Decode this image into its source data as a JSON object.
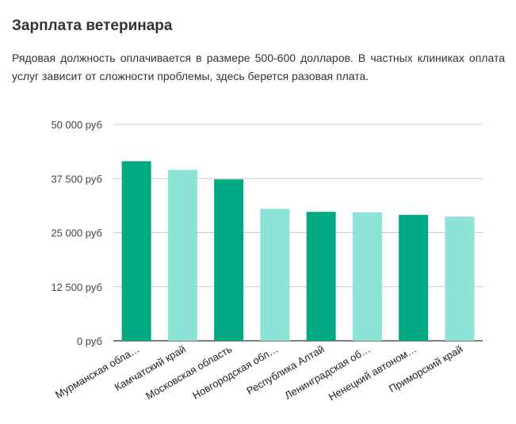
{
  "article": {
    "heading": "Зарплата ветеринара",
    "intro": "Рядовая должность оплачивается в размере 500-600 долларов. В частных клиниках оплата услуг зависит от сложности проблемы, здесь берется разовая плата."
  },
  "chart_data": {
    "type": "bar",
    "categories": [
      "Мурманская обла…",
      "Камчатский край",
      "Московская область",
      "Новгородская обл…",
      "Республика Алтай",
      "Ленинградская об…",
      "Ненецкий автоном…",
      "Приморский край"
    ],
    "values": [
      41500,
      39500,
      37300,
      30500,
      29800,
      29700,
      29100,
      28700
    ],
    "yticks": [
      "0 руб",
      "12 500 руб",
      "25 000 руб",
      "37 500 руб",
      "50 000 руб"
    ],
    "ylim": [
      0,
      50000
    ],
    "grid": true,
    "colors": [
      "#00a982",
      "#8de3d6"
    ]
  }
}
